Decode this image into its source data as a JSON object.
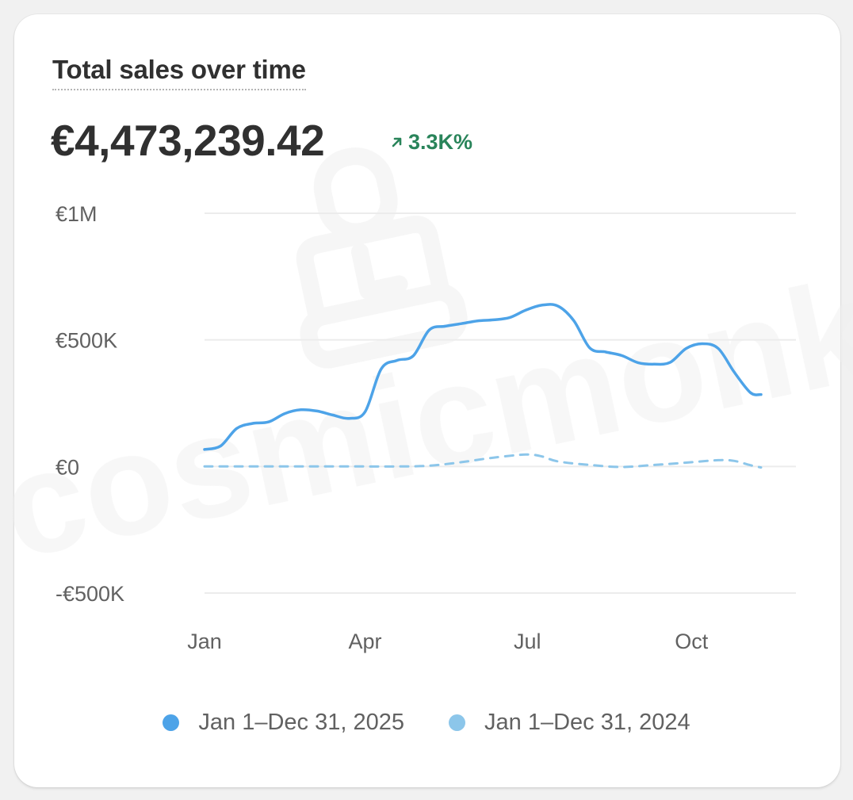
{
  "card": {
    "title": "Total sales over time",
    "total": "€4,473,239.42",
    "change": "3.3K%",
    "change_icon": "arrow-up-right-icon",
    "watermark": "cosmicmonks"
  },
  "colors": {
    "series_2025": "#4da3e8",
    "series_2024": "#8cc6ea",
    "positive": "#29845a",
    "grid": "#ececec",
    "axis_text": "#616161"
  },
  "chart_data": {
    "type": "line",
    "title": "Total sales over time",
    "y_ticks": [
      {
        "value": 1000000,
        "label": "€1M"
      },
      {
        "value": 500000,
        "label": "€500K"
      },
      {
        "value": 0,
        "label": "€0"
      },
      {
        "value": -500000,
        "label": "-€500K"
      }
    ],
    "ylim": [
      -500000,
      1000000
    ],
    "x_ticks": [
      {
        "day": 0,
        "label": "Jan"
      },
      {
        "day": 90,
        "label": "Apr"
      },
      {
        "day": 181,
        "label": "Jul"
      },
      {
        "day": 273,
        "label": "Oct"
      }
    ],
    "xlim": [
      0,
      330
    ],
    "grid": true,
    "legend_position": "bottom-center",
    "series": [
      {
        "name": "Jan 1–Dec 31, 2025",
        "style": "solid",
        "points": [
          [
            0,
            67000
          ],
          [
            9,
            81000
          ],
          [
            18,
            150000
          ],
          [
            27,
            170000
          ],
          [
            36,
            176000
          ],
          [
            45,
            209000
          ],
          [
            54,
            224000
          ],
          [
            63,
            219000
          ],
          [
            72,
            203000
          ],
          [
            81,
            190000
          ],
          [
            90,
            216000
          ],
          [
            99,
            385000
          ],
          [
            108,
            419000
          ],
          [
            117,
            437000
          ],
          [
            126,
            539000
          ],
          [
            135,
            554000
          ],
          [
            144,
            564000
          ],
          [
            153,
            575000
          ],
          [
            162,
            579000
          ],
          [
            171,
            588000
          ],
          [
            180,
            617000
          ],
          [
            189,
            637000
          ],
          [
            198,
            634000
          ],
          [
            207,
            576000
          ],
          [
            216,
            468000
          ],
          [
            225,
            452000
          ],
          [
            234,
            438000
          ],
          [
            243,
            410000
          ],
          [
            252,
            404000
          ],
          [
            261,
            411000
          ],
          [
            270,
            466000
          ],
          [
            279,
            485000
          ],
          [
            288,
            466000
          ],
          [
            297,
            372000
          ],
          [
            306,
            292000
          ],
          [
            312,
            284000
          ]
        ]
      },
      {
        "name": "Jan 1–Dec 31, 2024",
        "style": "dashed",
        "points": [
          [
            0,
            0
          ],
          [
            18,
            0
          ],
          [
            36,
            0
          ],
          [
            54,
            0
          ],
          [
            72,
            0
          ],
          [
            90,
            0
          ],
          [
            108,
            0
          ],
          [
            126,
            3000
          ],
          [
            144,
            17000
          ],
          [
            162,
            35000
          ],
          [
            180,
            47000
          ],
          [
            189,
            40000
          ],
          [
            198,
            20000
          ],
          [
            216,
            6000
          ],
          [
            234,
            -2000
          ],
          [
            252,
            6000
          ],
          [
            270,
            15000
          ],
          [
            288,
            25000
          ],
          [
            297,
            22000
          ],
          [
            306,
            5000
          ],
          [
            312,
            -4000
          ]
        ]
      }
    ]
  }
}
